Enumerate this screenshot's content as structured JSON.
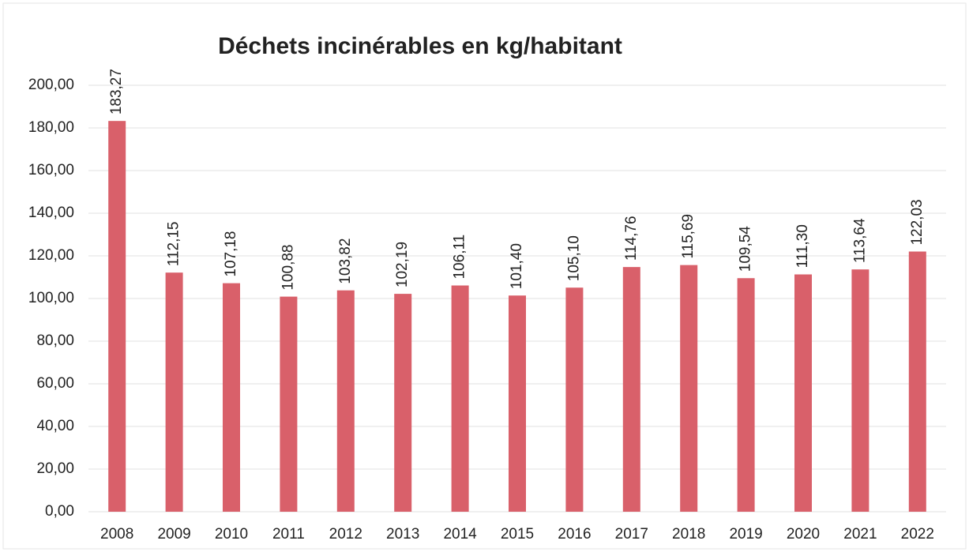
{
  "chart_data": {
    "type": "bar",
    "title": "Déchets incinérables en kg/habitant",
    "categories": [
      "2008",
      "2009",
      "2010",
      "2011",
      "2012",
      "2013",
      "2014",
      "2015",
      "2016",
      "2017",
      "2018",
      "2019",
      "2020",
      "2021",
      "2022"
    ],
    "values": [
      183.27,
      112.15,
      107.18,
      100.88,
      103.82,
      102.19,
      106.11,
      101.4,
      105.1,
      114.76,
      115.69,
      109.54,
      111.3,
      113.64,
      122.03
    ],
    "value_labels": [
      "183,27",
      "112,15",
      "107,18",
      "100,88",
      "103,82",
      "102,19",
      "106,11",
      "101,40",
      "105,10",
      "114,76",
      "115,69",
      "109,54",
      "111,30",
      "113,64",
      "122,03"
    ],
    "color": "#d9606a",
    "ylim": [
      0,
      200
    ],
    "yticks": [
      {
        "value": 0,
        "label": "0,00"
      },
      {
        "value": 20,
        "label": "20,00"
      },
      {
        "value": 40,
        "label": "40,00"
      },
      {
        "value": 60,
        "label": "60,00"
      },
      {
        "value": 80,
        "label": "80,00"
      },
      {
        "value": 100,
        "label": "100,00"
      },
      {
        "value": 120,
        "label": "120,00"
      },
      {
        "value": 140,
        "label": "140,00"
      },
      {
        "value": 160,
        "label": "160,00"
      },
      {
        "value": 180,
        "label": "180,00"
      },
      {
        "value": 200,
        "label": "200,00"
      }
    ],
    "grid": true
  }
}
